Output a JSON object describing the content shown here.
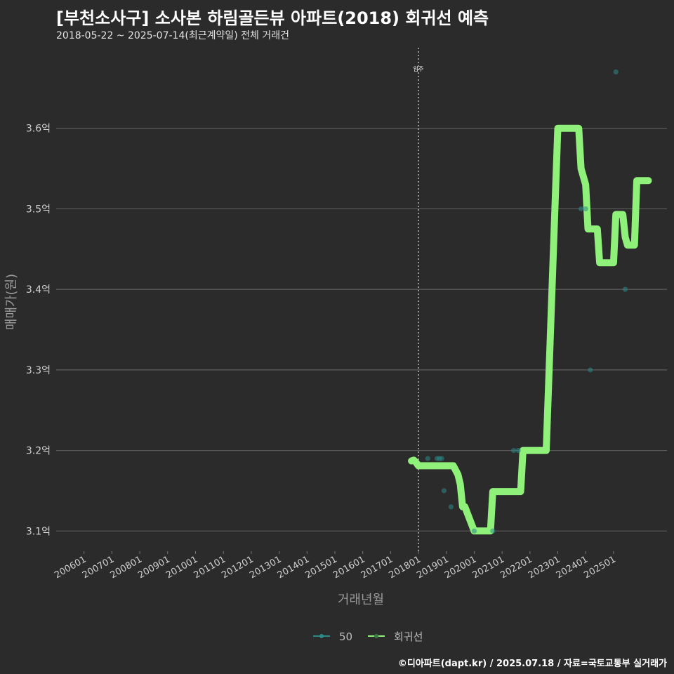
{
  "header": {
    "title": "[부천소사구] 소사본 하림골든뷰 아파트(2018) 회귀선 예측",
    "subtitle": "2018-05-22 ~ 2025-07-14(최근계약일) 전체 거래건"
  },
  "caption": "©디아파트(dapt.kr) / 2025.07.18 / 자료=국토교통부 실거래가",
  "chart_data": {
    "type": "scatter",
    "title": "[부천소사구] 소사본 하림골든뷰 아파트(2018) 회귀선 예측",
    "subtitle": "2018-05-22 ~ 2025-07-14(최근계약일) 전체 거래건",
    "xlabel": "거래년월",
    "ylabel": "매매가(원)",
    "y_unit": "억",
    "ylim": [
      3.075,
      3.7
    ],
    "y_ticks": [
      3.1,
      3.2,
      3.3,
      3.4,
      3.5,
      3.6
    ],
    "y_tick_labels": [
      "3.1억",
      "3.2억",
      "3.3억",
      "3.4억",
      "3.5억",
      "3.6억"
    ],
    "x_range": [
      "2005-01",
      "2026-12"
    ],
    "x_ticks": [
      "200601",
      "200701",
      "200801",
      "200901",
      "201001",
      "201101",
      "201201",
      "201301",
      "201401",
      "201501",
      "201601",
      "201701",
      "201801",
      "201901",
      "202001",
      "202101",
      "202201",
      "202301",
      "202401",
      "202501"
    ],
    "grid": true,
    "legend_position": "bottom",
    "annotation": {
      "label": "입주",
      "x": "2018-01"
    },
    "series": [
      {
        "name": "50",
        "kind": "scatter",
        "color": "#2a8a88",
        "points": [
          {
            "x": "2018-05",
            "y": 3.19
          },
          {
            "x": "2018-09",
            "y": 3.19
          },
          {
            "x": "2018-10",
            "y": 3.19
          },
          {
            "x": "2018-11",
            "y": 3.19
          },
          {
            "x": "2018-12",
            "y": 3.15
          },
          {
            "x": "2019-03",
            "y": 3.13
          },
          {
            "x": "2020-01",
            "y": 3.1
          },
          {
            "x": "2020-09",
            "y": 3.1
          },
          {
            "x": "2021-06",
            "y": 3.2
          },
          {
            "x": "2021-08",
            "y": 3.2
          },
          {
            "x": "2023-11",
            "y": 3.5
          },
          {
            "x": "2024-01",
            "y": 3.5
          },
          {
            "x": "2024-03",
            "y": 3.3
          },
          {
            "x": "2025-02",
            "y": 3.67
          },
          {
            "x": "2025-06",
            "y": 3.4
          }
        ]
      },
      {
        "name": "회귀선",
        "kind": "line",
        "color": "#8ff07a",
        "points": [
          {
            "x": "2017-10",
            "y": 3.187
          },
          {
            "x": "2017-11",
            "y": 3.188
          },
          {
            "x": "2017-12",
            "y": 3.185
          },
          {
            "x": "2018-01",
            "y": 3.181
          },
          {
            "x": "2019-04",
            "y": 3.181
          },
          {
            "x": "2019-06",
            "y": 3.17
          },
          {
            "x": "2019-07",
            "y": 3.158
          },
          {
            "x": "2019-08",
            "y": 3.13
          },
          {
            "x": "2019-09",
            "y": 3.13
          },
          {
            "x": "2020-01",
            "y": 3.1
          },
          {
            "x": "2020-08",
            "y": 3.1
          },
          {
            "x": "2020-09",
            "y": 3.149
          },
          {
            "x": "2021-09",
            "y": 3.149
          },
          {
            "x": "2021-10",
            "y": 3.2
          },
          {
            "x": "2022-08",
            "y": 3.2
          },
          {
            "x": "2023-01",
            "y": 3.6
          },
          {
            "x": "2023-10",
            "y": 3.6
          },
          {
            "x": "2023-11",
            "y": 3.55
          },
          {
            "x": "2024-01",
            "y": 3.53
          },
          {
            "x": "2024-02",
            "y": 3.475
          },
          {
            "x": "2024-06",
            "y": 3.475
          },
          {
            "x": "2024-07",
            "y": 3.433
          },
          {
            "x": "2025-01",
            "y": 3.433
          },
          {
            "x": "2025-02",
            "y": 3.493
          },
          {
            "x": "2025-05",
            "y": 3.493
          },
          {
            "x": "2025-06",
            "y": 3.465
          },
          {
            "x": "2025-07",
            "y": 3.455
          },
          {
            "x": "2025-10",
            "y": 3.455
          },
          {
            "x": "2025-11",
            "y": 3.535
          },
          {
            "x": "2026-04",
            "y": 3.535
          }
        ]
      }
    ]
  }
}
